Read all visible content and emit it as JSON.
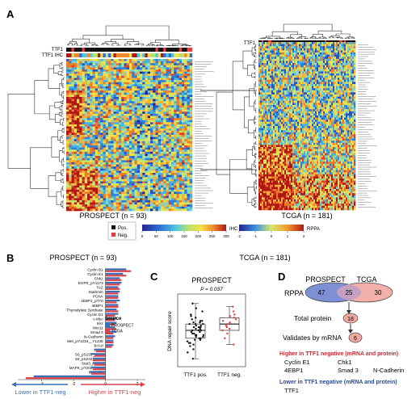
{
  "panels": {
    "a": "A",
    "b": "B",
    "c": "C",
    "d": "D"
  },
  "panel_a": {
    "row_label_ttf1": "TTF1",
    "row_label_ttf1_ihc": "TTF1 IHC",
    "row_label_ttf1_right": "TTF1",
    "left_title": "PROSPECT (n = 93)",
    "right_title": "TCGA (n = 181)",
    "legend_pos": "Pos.",
    "legend_neg": "Neg.",
    "ihc_label": "IHC",
    "rppa_label": "RPPA",
    "ihc_ticks": [
      "0",
      "50",
      "100",
      "150",
      "200",
      "250",
      "300"
    ],
    "rppa_ticks": [
      "-2",
      "-1",
      "0",
      "1",
      "2"
    ],
    "colors": {
      "pos": "#111111",
      "neg": "#e23b3b"
    }
  },
  "panel_b": {
    "title": "PROSPECT (n = 93)",
    "legend_title": "Source",
    "legend_items": [
      {
        "name": "PROSPECT",
        "color": "#3a6fb5"
      },
      {
        "name": "TCGA",
        "color": "#d9404a"
      }
    ],
    "arrow_left": "Lower in TTF1-neg",
    "arrow_right": "Higher in TTF1-neg",
    "ticks": [
      "-4",
      "-2",
      "0",
      "2"
    ]
  },
  "panel_c": {
    "title": "PROSPECT",
    "pvalue": "P = 0.037",
    "ylabel": "DNA repair score",
    "groups": [
      "TTF1 pos.",
      "TTF1 neg."
    ]
  },
  "tcga_header": "TCGA (n = 181)",
  "panel_d": {
    "left_label": "PROSPECT",
    "right_label": "TCGA",
    "rppa": "RPPA",
    "left_only": "47",
    "overlap": "25",
    "right_only": "30",
    "total_protein_label": "Total protein",
    "total_protein": "18",
    "mrna_label": "Validates by mRNA",
    "mrna": "6",
    "higher_title": "Higher in TTF1 negative (mRNA and protein)",
    "higher_genes": [
      "Cyclin E1",
      "Chk1",
      "4EBP1",
      "Smad 3",
      "N-Cadherin"
    ],
    "lower_title": "Lower in TTF1 negative (mRNA and protein)",
    "lower_genes": [
      "TTF1"
    ]
  },
  "chart_data": [
    {
      "type": "bar",
      "title": "PROSPECT (n = 93)",
      "categories": [
        "Cyclin B1",
        "Cyclin E1",
        "Chk1",
        "EGFR_pY1173",
        "TAZ",
        "Stathmin",
        "PCNA",
        "4EBP1_pT70",
        "4EBP1",
        "Thymidylate Synthase",
        "Cyclin D1",
        "c-Myc",
        "Ire2",
        "Mre11",
        "Smad 3",
        "N-Cadherin",
        "Met_pY1234__Y1235",
        "Bcl-xl",
        "TSC2",
        "S6_pS235_S236",
        "S6_pS240_S244",
        "Stat3_pY705",
        "MAPK_pT202_Y204",
        "Caveolin",
        "TTF1"
      ],
      "series": [
        {
          "name": "PROSPECT",
          "values": [
            1.3,
            1.1,
            0.9,
            1.0,
            0.8,
            0.9,
            0.8,
            0.9,
            0.8,
            0.7,
            0.8,
            0.7,
            0.7,
            0.6,
            0.7,
            0.6,
            0.5,
            0.5,
            -0.7,
            -0.9,
            -0.8,
            -0.8,
            -0.9,
            -1.0,
            -4.5
          ]
        },
        {
          "name": "TCGA",
          "values": [
            1.6,
            1.3,
            1.0,
            0.9,
            0.9,
            0.8,
            0.8,
            0.7,
            0.8,
            0.8,
            0.6,
            0.6,
            0.6,
            0.7,
            0.5,
            0.5,
            0.5,
            0.4,
            -0.6,
            -0.7,
            -0.8,
            -0.7,
            -0.8,
            -0.9,
            -5.0
          ]
        }
      ],
      "xlim": [
        -5.5,
        2.5
      ]
    },
    {
      "type": "scatter",
      "title": "PROSPECT",
      "categories": [
        "TTF1 pos.",
        "TTF1 neg."
      ],
      "ylabel": "DNA repair score",
      "series": [
        {
          "name": "TTF1 pos.",
          "values": [
            -1.8,
            -1.4,
            -1.2,
            -1.0,
            -0.9,
            -0.8,
            -0.7,
            -0.6,
            -0.6,
            -0.5,
            -0.4,
            -0.4,
            -0.3,
            -0.3,
            -0.2,
            -0.2,
            -0.1,
            -0.1,
            0.0,
            0.0,
            0.1,
            0.1,
            0.2,
            0.2,
            0.3,
            0.3,
            0.4,
            0.4,
            0.5,
            0.5,
            0.6,
            0.7,
            0.8,
            0.9,
            1.0,
            1.2,
            1.4,
            1.7,
            -0.8,
            -0.5,
            -0.3,
            0.0,
            0.2,
            0.4,
            0.6
          ]
        },
        {
          "name": "TTF1 neg.",
          "values": [
            -0.9,
            -0.5,
            -0.2,
            0.0,
            0.1,
            0.2,
            0.3,
            0.4,
            0.5,
            0.6,
            0.7,
            0.8,
            0.9,
            1.0,
            1.2,
            1.5
          ]
        }
      ]
    }
  ]
}
